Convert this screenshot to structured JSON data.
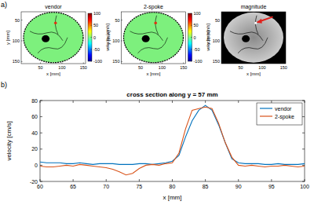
{
  "chart_data": [
    {
      "type": "image",
      "panel_label": "a)",
      "title": "vendor",
      "xlabel": "x [mm]",
      "ylabel": "y [mm]",
      "xlim": [
        5,
        155
      ],
      "ylim": [
        30,
        155
      ],
      "xticks": [
        50,
        100,
        150
      ],
      "yticks": [
        50,
        100,
        150
      ],
      "color": "jet",
      "colorbar_lim": [
        -100,
        100
      ],
      "colorbar_ticks": [
        -100,
        -50,
        0,
        50,
        100
      ],
      "colorbar_label": "velocity [cm/s]"
    },
    {
      "type": "image",
      "title": "2-spoke",
      "xlabel": "x [mm]",
      "ylabel": "y [mm]",
      "xlim": [
        5,
        155
      ],
      "ylim": [
        30,
        155
      ],
      "xticks": [
        50,
        100,
        150
      ],
      "yticks": [
        50,
        100,
        150
      ],
      "color": "jet",
      "colorbar_lim": [
        -100,
        100
      ],
      "colorbar_ticks": [
        -100,
        -50,
        0,
        50,
        100
      ],
      "colorbar_label": "velocity [cm/s]"
    },
    {
      "type": "image",
      "title": "magnitude",
      "xlabel": "x [mm]",
      "ylabel": "y [mm]",
      "xlim": [
        5,
        155
      ],
      "ylim": [
        30,
        155
      ],
      "xticks": [
        50,
        100,
        150
      ],
      "yticks": [
        50,
        100,
        150
      ],
      "color": "gray"
    },
    {
      "type": "line",
      "panel_label": "b)",
      "title": "cross section along y = 57 mm",
      "xlabel": "x [mm]",
      "ylabel": "velocity [cm/s]",
      "xlim": [
        60,
        100
      ],
      "ylim": [
        -20,
        80
      ],
      "xticks": [
        60,
        65,
        70,
        75,
        80,
        85,
        90,
        95,
        100
      ],
      "yticks": [
        -20,
        0,
        20,
        40,
        60,
        80
      ],
      "grid": false,
      "legend": "northeast",
      "x": [
        60,
        61,
        62,
        63,
        64,
        65,
        66,
        67,
        68,
        69,
        70,
        71,
        72,
        73,
        74,
        75,
        76,
        77,
        78,
        79,
        80,
        81,
        82,
        83,
        84,
        85,
        86,
        87,
        88,
        89,
        90,
        91,
        92,
        93,
        94,
        95,
        96,
        97,
        98,
        99,
        100
      ],
      "series": [
        {
          "name": "vendor",
          "color": "#0072bd",
          "values": [
            4,
            3,
            3,
            3,
            2,
            2,
            3,
            2,
            1,
            2,
            2,
            2,
            1,
            1,
            1,
            2,
            2,
            1,
            2,
            3,
            5,
            12,
            35,
            55,
            68,
            74,
            68,
            50,
            28,
            8,
            3,
            2,
            2,
            2,
            1,
            1,
            2,
            1,
            1,
            1,
            2
          ]
        },
        {
          "name": "2-spoke",
          "color": "#d95319",
          "values": [
            -1,
            -2,
            -2,
            -1,
            0,
            -1,
            1,
            0,
            -1,
            -2,
            -3,
            -5,
            -8,
            -12,
            -10,
            -4,
            0,
            1,
            0,
            2,
            3,
            15,
            45,
            68,
            70,
            72,
            70,
            52,
            28,
            10,
            0,
            -1,
            0,
            -1,
            -2,
            -1,
            -1,
            0,
            -1,
            -2,
            -1
          ]
        }
      ]
    }
  ]
}
